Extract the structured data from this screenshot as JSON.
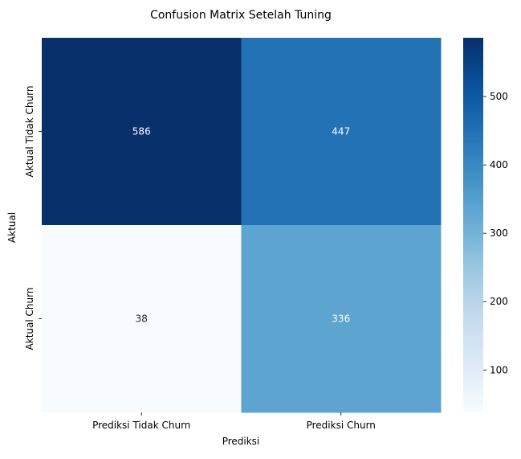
{
  "chart_data": {
    "type": "heatmap",
    "title": "Confusion Matrix Setelah Tuning",
    "xlabel": "Prediksi",
    "ylabel": "Aktual",
    "x_categories": [
      "Prediksi Tidak Churn",
      "Prediksi Churn"
    ],
    "y_categories": [
      "Aktual Tidak Churn",
      "Aktual Churn"
    ],
    "values": [
      [
        586,
        447
      ],
      [
        38,
        336
      ]
    ],
    "colormap": "Blues",
    "colorbar": {
      "range": [
        38,
        586
      ],
      "ticks": [
        100,
        200,
        300,
        400,
        500
      ]
    },
    "colors": {
      "low": "#f7fbff",
      "high": "#08306b",
      "text_dark": "#262626",
      "text_light": "#ffffff"
    }
  }
}
